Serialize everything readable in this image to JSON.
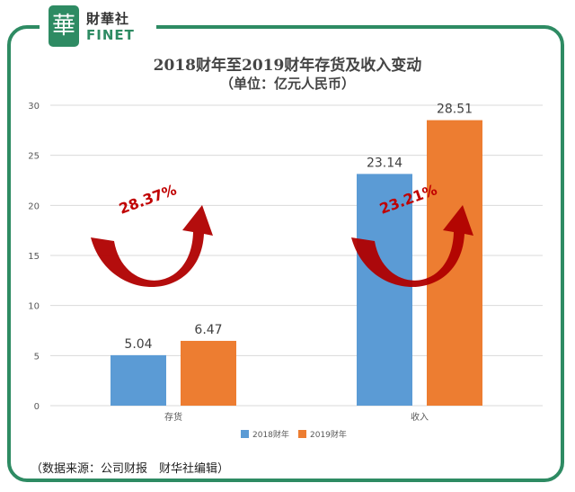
{
  "logo": {
    "glyph": "華",
    "name_cn": "財華社",
    "name_en": "FINET"
  },
  "chart_data": {
    "type": "bar",
    "title": "2018财年至2019财年存货及收入变动",
    "subtitle": "（单位：亿元人民币）",
    "categories": [
      "存货",
      "收入"
    ],
    "series": [
      {
        "name": "2018财年",
        "values": [
          5.04,
          23.14
        ],
        "color": "#5b9bd5"
      },
      {
        "name": "2019财年",
        "values": [
          6.47,
          28.51
        ],
        "color": "#ed7d31"
      }
    ],
    "data_labels": [
      [
        "5.04",
        "6.47"
      ],
      [
        "23.14",
        "28.51"
      ]
    ],
    "ylim": [
      0,
      30
    ],
    "yticks": [
      0,
      5,
      10,
      15,
      20,
      25,
      30
    ],
    "grid": true,
    "legend_position": "bottom",
    "annotations": [
      {
        "category_index": 0,
        "text": "28.37%",
        "color": "#c00000"
      },
      {
        "category_index": 1,
        "text": "23.21%",
        "color": "#c00000"
      }
    ]
  },
  "colors": {
    "frame": "#2e8b63",
    "grid": "#d9d9d9",
    "arrow": "#b00000"
  },
  "source": "（数据来源：公司财报　财华社编辑）"
}
